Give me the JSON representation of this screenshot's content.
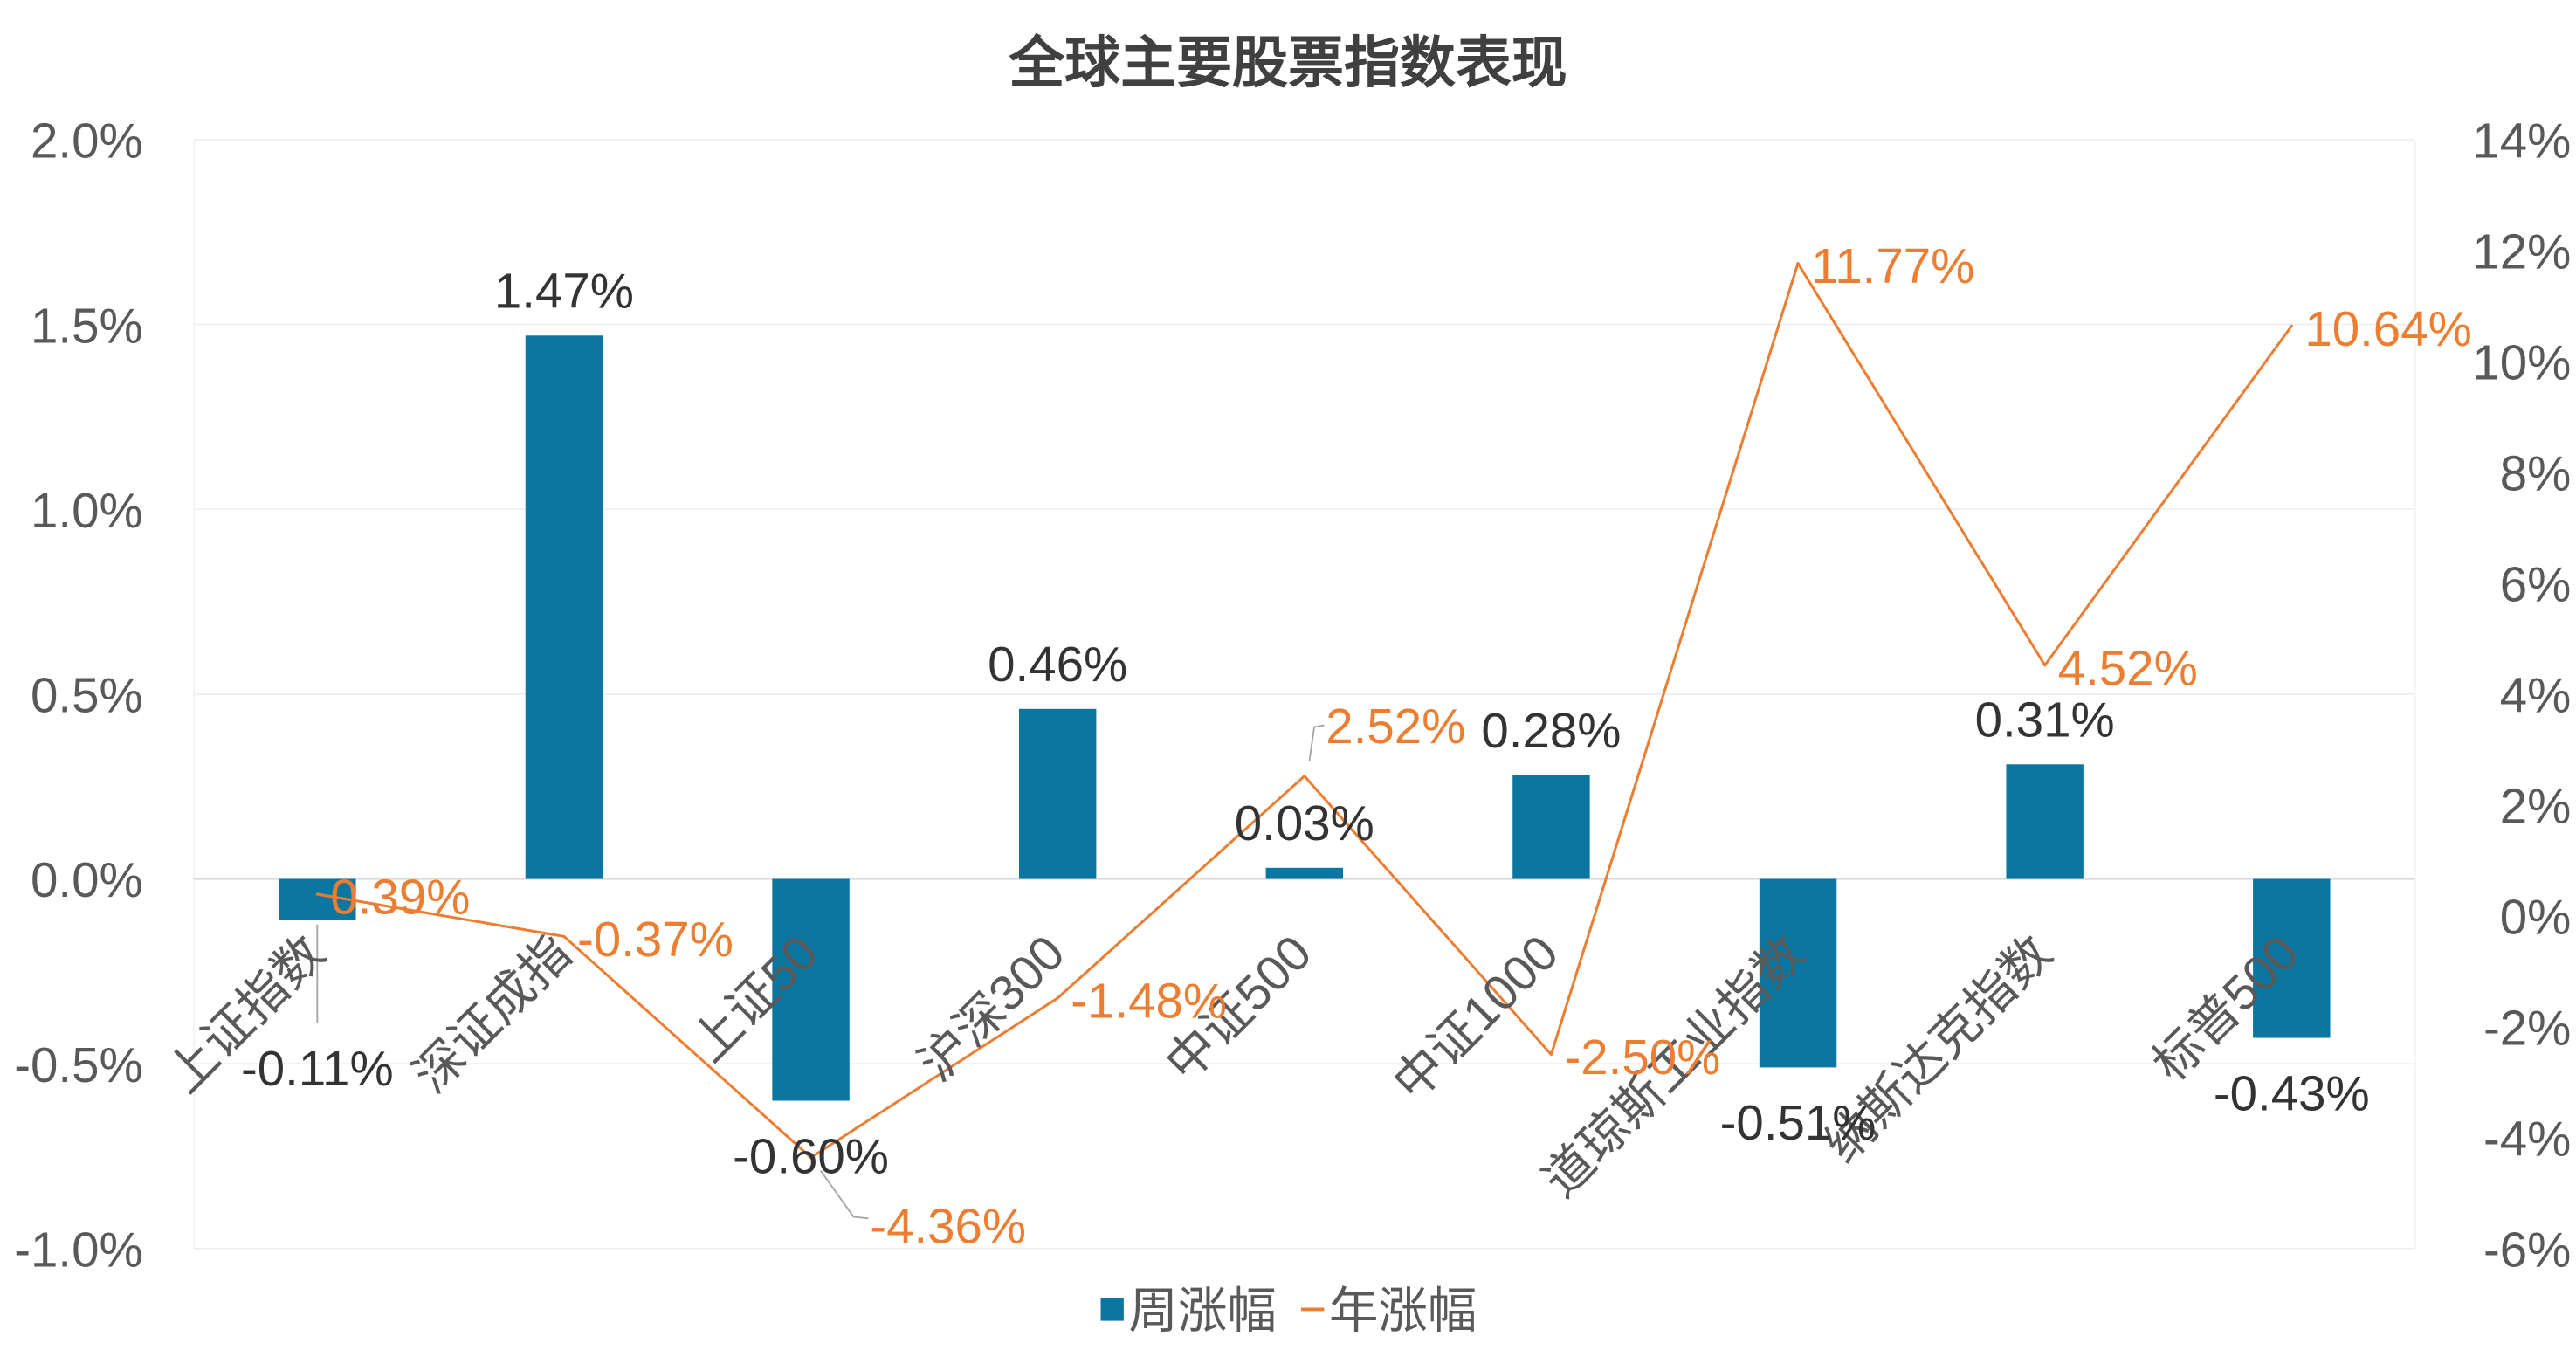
{
  "chart_data": {
    "type": "bar",
    "title": "全球主要股票指数表现",
    "categories": [
      "上证指数",
      "深证成指",
      "上证50",
      "沪深300",
      "中证500",
      "中证1000",
      "道琼斯工业指数",
      "纳斯达克指数",
      "标普500"
    ],
    "series": [
      {
        "name": "周涨幅",
        "color": "#0B77A1",
        "values": [
          -0.11,
          1.47,
          -0.6,
          0.46,
          0.03,
          0.28,
          -0.51,
          0.31,
          -0.43
        ],
        "labels": [
          "-0.11%",
          "1.47%",
          "-0.60%",
          "0.46%",
          "0.03%",
          "0.28%",
          "-0.51%",
          "0.31%",
          "-0.43%"
        ]
      },
      {
        "name": "年涨幅",
        "color": "#ED7D31",
        "values": [
          0.39,
          -0.37,
          -4.36,
          -1.48,
          2.52,
          -2.5,
          11.77,
          4.52,
          10.64
        ],
        "labels": [
          "0.39%",
          "-0.37%",
          "-4.36%",
          "-1.48%",
          "2.52%",
          "-2.50%",
          "11.77%",
          "4.52%",
          "10.64%"
        ]
      }
    ],
    "y_left": {
      "min": -1.0,
      "max": 2.0,
      "tick_labels": [
        "-1.0%",
        "-0.5%",
        "0.0%",
        "0.5%",
        "1.0%",
        "1.5%",
        "2.0%"
      ]
    },
    "y_right": {
      "min": -6,
      "max": 14,
      "tick_labels": [
        "-6%",
        "-4%",
        "-2%",
        "0%",
        "2%",
        "4%",
        "6%",
        "8%",
        "10%",
        "12%",
        "14%"
      ]
    },
    "grid": true,
    "legend": "bottom"
  }
}
